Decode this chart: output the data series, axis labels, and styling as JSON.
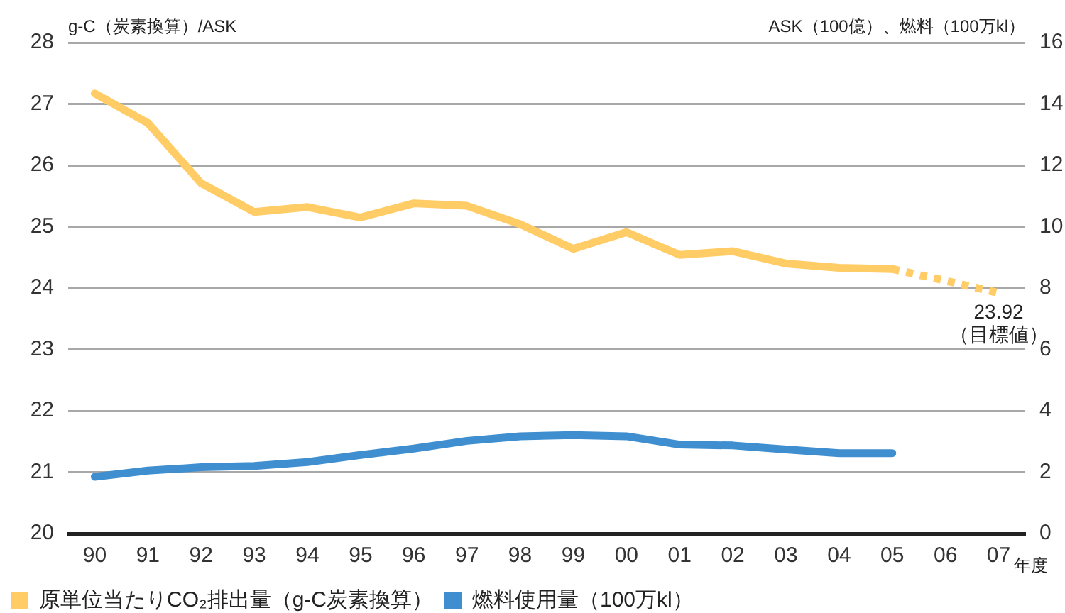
{
  "chart_data": {
    "type": "line",
    "categories": [
      "90",
      "91",
      "92",
      "93",
      "94",
      "95",
      "96",
      "97",
      "98",
      "99",
      "00",
      "01",
      "02",
      "03",
      "04",
      "05",
      "06",
      "07"
    ],
    "series": [
      {
        "name": "原単位当たりCO₂排出量（g-C炭素換算）",
        "color": "#ffcc66",
        "values": [
          27.17,
          26.69,
          25.71,
          25.24,
          25.32,
          25.15,
          25.38,
          25.34,
          25.04,
          24.64,
          24.91,
          24.54,
          24.6,
          24.4,
          24.33,
          24.31,
          null,
          null
        ]
      },
      {
        "color": "#ffcc66",
        "line_style": "dotted",
        "values": [
          null,
          null,
          null,
          null,
          null,
          null,
          null,
          null,
          null,
          null,
          null,
          null,
          null,
          null,
          null,
          24.31,
          24.12,
          23.92
        ],
        "value_labels": [
          null,
          null,
          null,
          null,
          null,
          null,
          null,
          null,
          null,
          null,
          null,
          null,
          null,
          null,
          null,
          null,
          null,
          "23.92"
        ]
      },
      {
        "name": "燃料使用量（100万kl）",
        "color": "#3f8fd0",
        "axis": "y2",
        "values": [
          1.85,
          2.05,
          2.16,
          2.2,
          2.33,
          2.56,
          2.77,
          3.02,
          3.17,
          3.21,
          3.17,
          2.9,
          2.87,
          2.74,
          2.62,
          2.62,
          null,
          null
        ]
      }
    ],
    "ylabel": "g-C（炭素換算）/ASK",
    "y2label": "ASK（100億）、燃料（100万kl）",
    "xlabel": "年度",
    "ylim": [
      20,
      28
    ],
    "yticks": [
      20,
      21,
      22,
      23,
      24,
      25,
      26,
      27,
      28
    ],
    "y2lim": [
      0,
      16
    ],
    "y2ticks": [
      0,
      2,
      4,
      6,
      8,
      10,
      12,
      14,
      16
    ],
    "annotations": [
      {
        "text": "（目標値）",
        "x": "07",
        "y": 23.92
      }
    ],
    "grid": "y",
    "legend": "bottom left",
    "marker": "none",
    "line_style": "solid"
  }
}
